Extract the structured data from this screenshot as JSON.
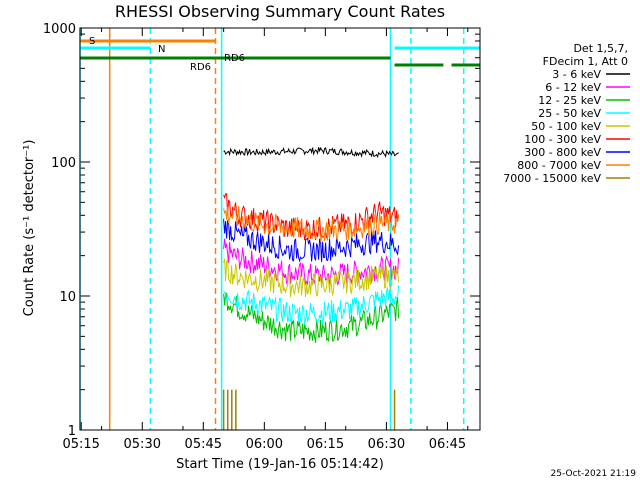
{
  "chart_data": {
    "type": "line",
    "title": "RHESSI Observing Summary Count Rates",
    "xlabel": "Start Time (19-Jan-16 05:14:42)",
    "ylabel": "Count Rate (s⁻¹ detector⁻¹)",
    "y_scale": "log",
    "ylim": [
      1,
      1000
    ],
    "xlim": [
      "05:14:42",
      "06:53:00"
    ],
    "x_ticks": [
      "05:15",
      "05:30",
      "05:45",
      "06:00",
      "06:15",
      "06:30",
      "06:45"
    ],
    "y_ticks": [
      "1",
      "10",
      "100",
      "1000"
    ],
    "timestamp": "25-Oct-2021 21:19",
    "legend_position": "top-right",
    "legend_header": [
      "Det 1,5,7,",
      "FDecim 1, Att 0"
    ],
    "series": [
      {
        "name": "3 - 6 keV",
        "color": "#000000",
        "x": [
          "05:50",
          "05:58",
          "06:06",
          "06:14",
          "06:22",
          "06:30",
          "06:33"
        ],
        "values": [
          120,
          118,
          120,
          122,
          118,
          115,
          112
        ]
      },
      {
        "name": "6 - 12 keV",
        "color": "#ff00ff",
        "x": [
          "05:50",
          "05:54",
          "06:00",
          "06:06",
          "06:14",
          "06:22",
          "06:28",
          "06:33"
        ],
        "values": [
          22,
          19,
          17,
          15,
          14,
          15,
          16,
          16
        ]
      },
      {
        "name": "12 - 25 keV",
        "color": "#00c000",
        "x": [
          "05:50",
          "05:54",
          "06:00",
          "06:06",
          "06:14",
          "06:22",
          "06:28",
          "06:33"
        ],
        "values": [
          10,
          8,
          6.5,
          5.5,
          5.5,
          6,
          7,
          8
        ]
      },
      {
        "name": "25 - 50 keV",
        "color": "#00ffff",
        "x": [
          "05:50",
          "05:54",
          "06:00",
          "06:06",
          "06:14",
          "06:22",
          "06:28",
          "06:33"
        ],
        "values": [
          11,
          9.5,
          8.5,
          7.5,
          7.5,
          8,
          9.5,
          10
        ]
      },
      {
        "name": "50 - 100 keV",
        "color": "#c8c800",
        "x": [
          "05:50",
          "05:54",
          "06:00",
          "06:06",
          "06:14",
          "06:22",
          "06:28",
          "06:33"
        ],
        "values": [
          16,
          14,
          13,
          12,
          12,
          13,
          14,
          14
        ]
      },
      {
        "name": "100 - 300 keV",
        "color": "#ff0000",
        "x": [
          "05:50",
          "05:54",
          "06:00",
          "06:06",
          "06:14",
          "06:22",
          "06:28",
          "06:33"
        ],
        "values": [
          50,
          40,
          36,
          32,
          32,
          35,
          42,
          38
        ]
      },
      {
        "name": "300 - 800 keV",
        "color": "#0000ff",
        "x": [
          "05:50",
          "05:54",
          "06:00",
          "06:06",
          "06:14",
          "06:22",
          "06:28",
          "06:33"
        ],
        "values": [
          34,
          28,
          25,
          22,
          22,
          24,
          26,
          24
        ]
      },
      {
        "name": "800 - 7000 keV",
        "color": "#ff8000",
        "x": [
          "05:50",
          "05:54",
          "06:00",
          "06:06",
          "06:14",
          "06:22",
          "06:28",
          "06:33"
        ],
        "values": [
          42,
          38,
          34,
          32,
          31,
          32,
          35,
          35
        ]
      },
      {
        "name": "7000 - 15000 keV",
        "color": "#a08000",
        "x": [
          "05:50",
          "05:51",
          "05:52",
          "05:53",
          "06:32"
        ],
        "values": [
          2,
          2,
          2,
          2,
          2
        ]
      }
    ],
    "flag_lines": [
      {
        "label": "S",
        "color": "#ff8000",
        "start": "05:14:42",
        "end": "05:48:00"
      },
      {
        "label": "N",
        "color": "#00ffff",
        "start": "05:14:42",
        "end": "05:32:00"
      },
      {
        "label": "N",
        "color": "#00ffff",
        "start": "06:32:00",
        "end": "06:53:00"
      },
      {
        "label": "RD6",
        "color": "#008000",
        "start": "05:14:42",
        "end": "06:31:00"
      },
      {
        "label": "RD6",
        "color": "#008000",
        "start": "06:32:00",
        "end": "06:44:00"
      },
      {
        "label": "RD6",
        "color": "#008000",
        "start": "06:46:00",
        "end": "06:53:00"
      }
    ],
    "flag_labels": [
      {
        "text": "S",
        "color": "#ff8000"
      },
      {
        "text": "N",
        "color": "#00ffff"
      },
      {
        "text": "RD6",
        "color": "#008000"
      },
      {
        "text": "RD6",
        "color": "#008000"
      }
    ],
    "boundaries": [
      {
        "kind": "solid",
        "color": "#00ffff",
        "time": "05:14:42"
      },
      {
        "kind": "solid",
        "color": "#ff8000",
        "time": "05:22:00"
      },
      {
        "kind": "dashed",
        "color": "#00ffff",
        "time": "05:32:00"
      },
      {
        "kind": "dashed",
        "color": "#ff8000",
        "time": "05:48:00"
      },
      {
        "kind": "solid",
        "color": "#00ffff",
        "time": "05:49:30"
      },
      {
        "kind": "solid",
        "color": "#00ffff",
        "time": "06:31:00"
      },
      {
        "kind": "dashed",
        "color": "#00ffff",
        "time": "06:36:00"
      },
      {
        "kind": "dashed",
        "color": "#00ffff",
        "time": "06:49:00"
      }
    ]
  }
}
